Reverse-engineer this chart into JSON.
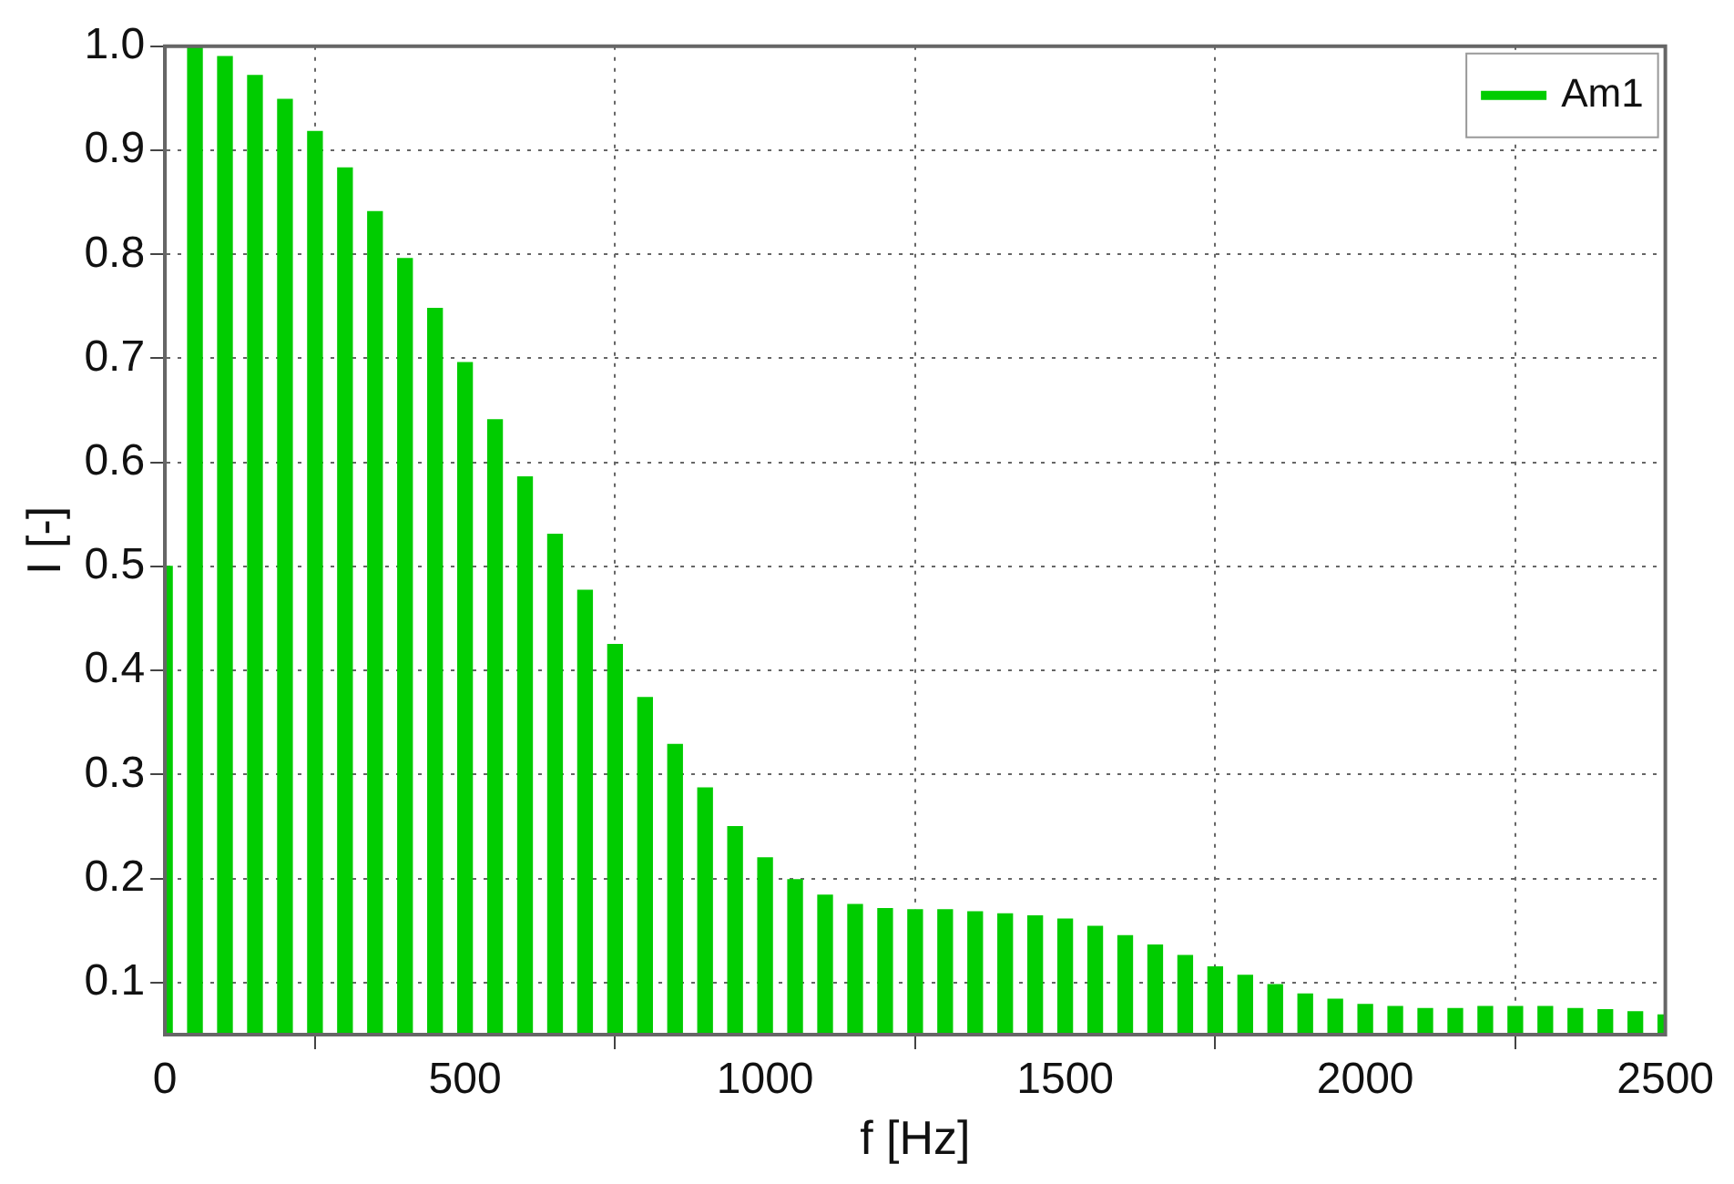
{
  "chart_data": {
    "type": "bar",
    "xlabel": "f [Hz]",
    "ylabel": "I [-]",
    "x": [
      0,
      50,
      100,
      150,
      200,
      250,
      300,
      350,
      400,
      450,
      500,
      550,
      600,
      650,
      700,
      750,
      800,
      850,
      900,
      950,
      1000,
      1050,
      1100,
      1150,
      1200,
      1250,
      1300,
      1350,
      1400,
      1450,
      1500,
      1550,
      1600,
      1650,
      1700,
      1750,
      1800,
      1850,
      1900,
      1950,
      2000,
      2050,
      2100,
      2150,
      2200,
      2250,
      2300,
      2350,
      2400,
      2450,
      2500
    ],
    "series": [
      {
        "name": "Am1",
        "color": "#00cc00",
        "values": [
          0.5,
          1.0,
          0.99,
          0.972,
          0.949,
          0.918,
          0.883,
          0.841,
          0.796,
          0.748,
          0.696,
          0.641,
          0.586,
          0.531,
          0.477,
          0.425,
          0.374,
          0.329,
          0.287,
          0.25,
          0.22,
          0.199,
          0.184,
          0.175,
          0.171,
          0.17,
          0.17,
          0.168,
          0.166,
          0.164,
          0.161,
          0.154,
          0.145,
          0.136,
          0.126,
          0.115,
          0.107,
          0.098,
          0.089,
          0.084,
          0.079,
          0.077,
          0.075,
          0.075,
          0.077,
          0.077,
          0.077,
          0.075,
          0.074,
          0.072,
          0.069
        ]
      }
    ],
    "xlim": [
      0,
      2500
    ],
    "xticks": [
      0,
      500,
      1000,
      1500,
      2000,
      2500
    ],
    "ylim": [
      0.05,
      1.0
    ],
    "yticks": [
      0.1,
      0.2,
      0.3,
      0.4,
      0.5,
      0.6,
      0.7,
      0.8,
      0.9,
      {
        "value": 1.0,
        "label": "1.0"
      }
    ],
    "grid": true,
    "legend": "top right"
  }
}
